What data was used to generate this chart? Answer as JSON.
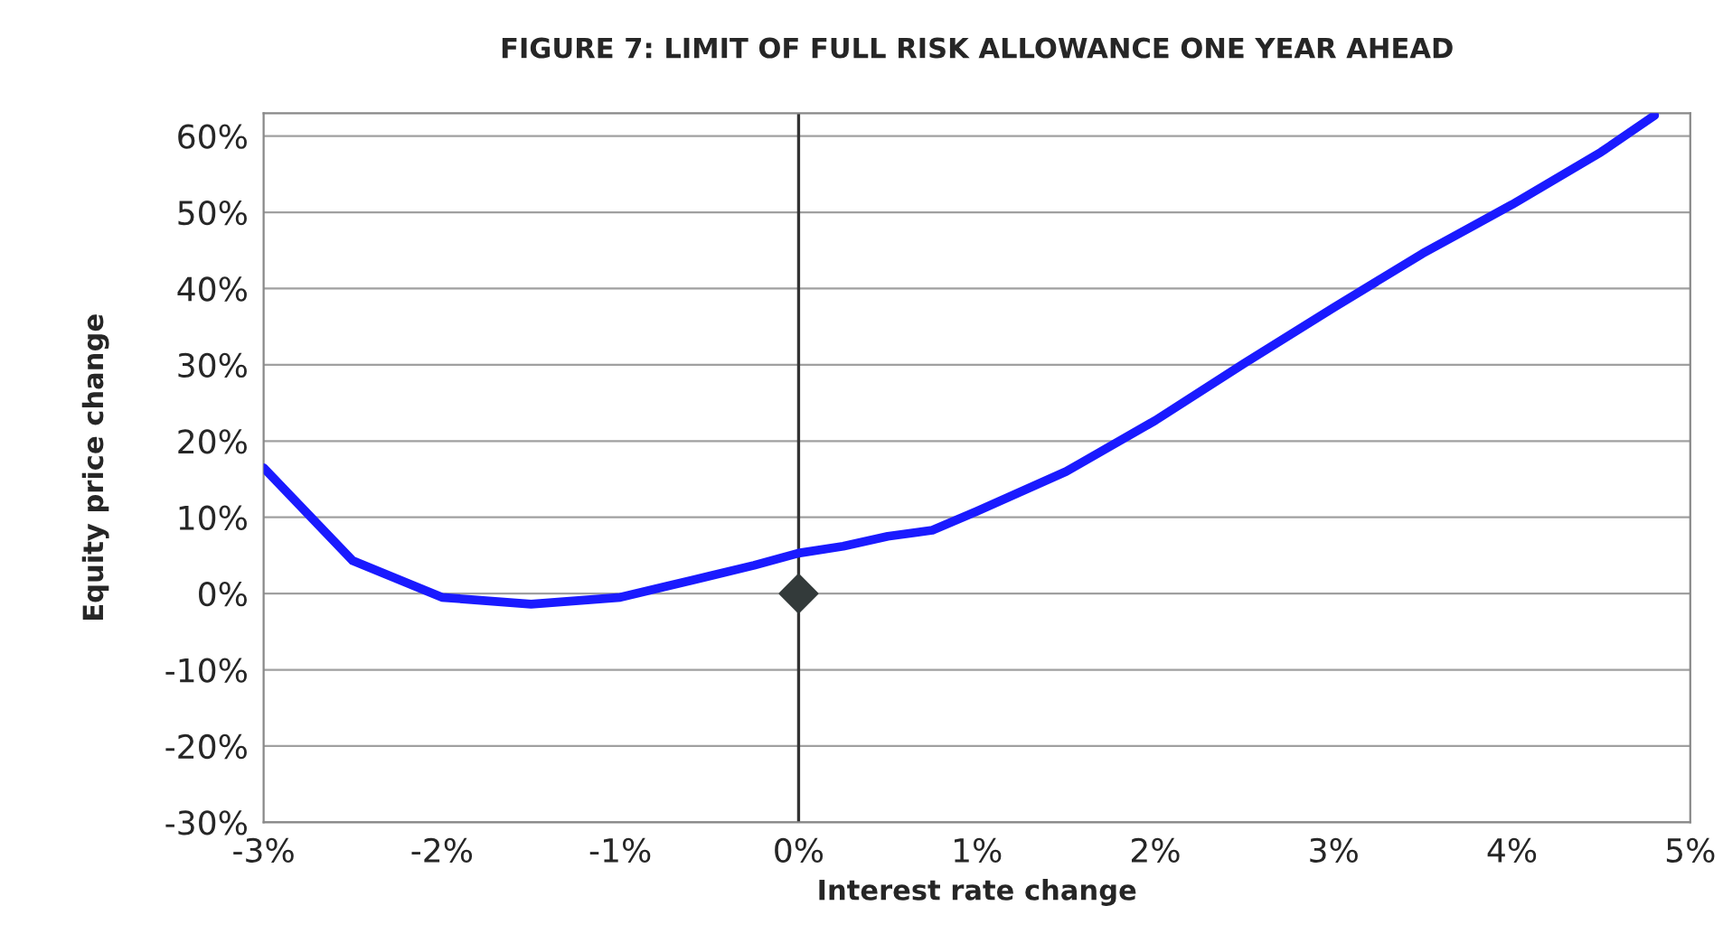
{
  "chart_data": {
    "type": "line",
    "title": "FIGURE 7: LIMIT OF FULL RISK ALLOWANCE ONE YEAR AHEAD",
    "xlabel": "Interest rate change",
    "ylabel": "Equity price change",
    "series": [
      {
        "color": "#1a1aff",
        "x": [
          -3,
          -2.5,
          -2,
          -1.5,
          -1,
          -0.75,
          -0.5,
          -0.25,
          0,
          0.25,
          0.5,
          0.75,
          1,
          1.5,
          2,
          2.5,
          3,
          3.5,
          4,
          4.5,
          4.8
        ],
        "values": [
          16.5,
          4.3,
          -0.5,
          -1.4,
          -0.5,
          0.9,
          2.3,
          3.7,
          5.3,
          6.2,
          7.5,
          8.3,
          10.8,
          16,
          22.7,
          30.2,
          37.5,
          44.6,
          51,
          57.9,
          62.7
        ]
      },
      {
        "type": "scatter",
        "color": "#333a3a",
        "marker": "diamond",
        "x": [
          0
        ],
        "values": [
          0
        ]
      }
    ],
    "xlim": [
      -3,
      5
    ],
    "ylim": [
      -30,
      63
    ],
    "xticks": [
      {
        "value": -3,
        "label": "-3%"
      },
      {
        "value": -2,
        "label": "-2%"
      },
      {
        "value": -1,
        "label": "-1%"
      },
      {
        "value": 0,
        "label": "0%"
      },
      {
        "value": 1,
        "label": "1%"
      },
      {
        "value": 2,
        "label": "2%"
      },
      {
        "value": 3,
        "label": "3%"
      },
      {
        "value": 4,
        "label": "4%"
      },
      {
        "value": 5,
        "label": "5%"
      }
    ],
    "yticks": [
      {
        "value": -30,
        "label": "-30%"
      },
      {
        "value": -20,
        "label": "-20%"
      },
      {
        "value": -10,
        "label": "-10%"
      },
      {
        "value": 0,
        "label": "0%"
      },
      {
        "value": 10,
        "label": "10%"
      },
      {
        "value": 20,
        "label": "20%"
      },
      {
        "value": 30,
        "label": "30%"
      },
      {
        "value": 40,
        "label": "40%"
      },
      {
        "value": 50,
        "label": "50%"
      },
      {
        "value": 60,
        "label": "60%"
      }
    ],
    "ref_lines": [
      {
        "axis": "x",
        "value": 0,
        "color": "#333333"
      }
    ],
    "grid": "y",
    "legend": false
  }
}
